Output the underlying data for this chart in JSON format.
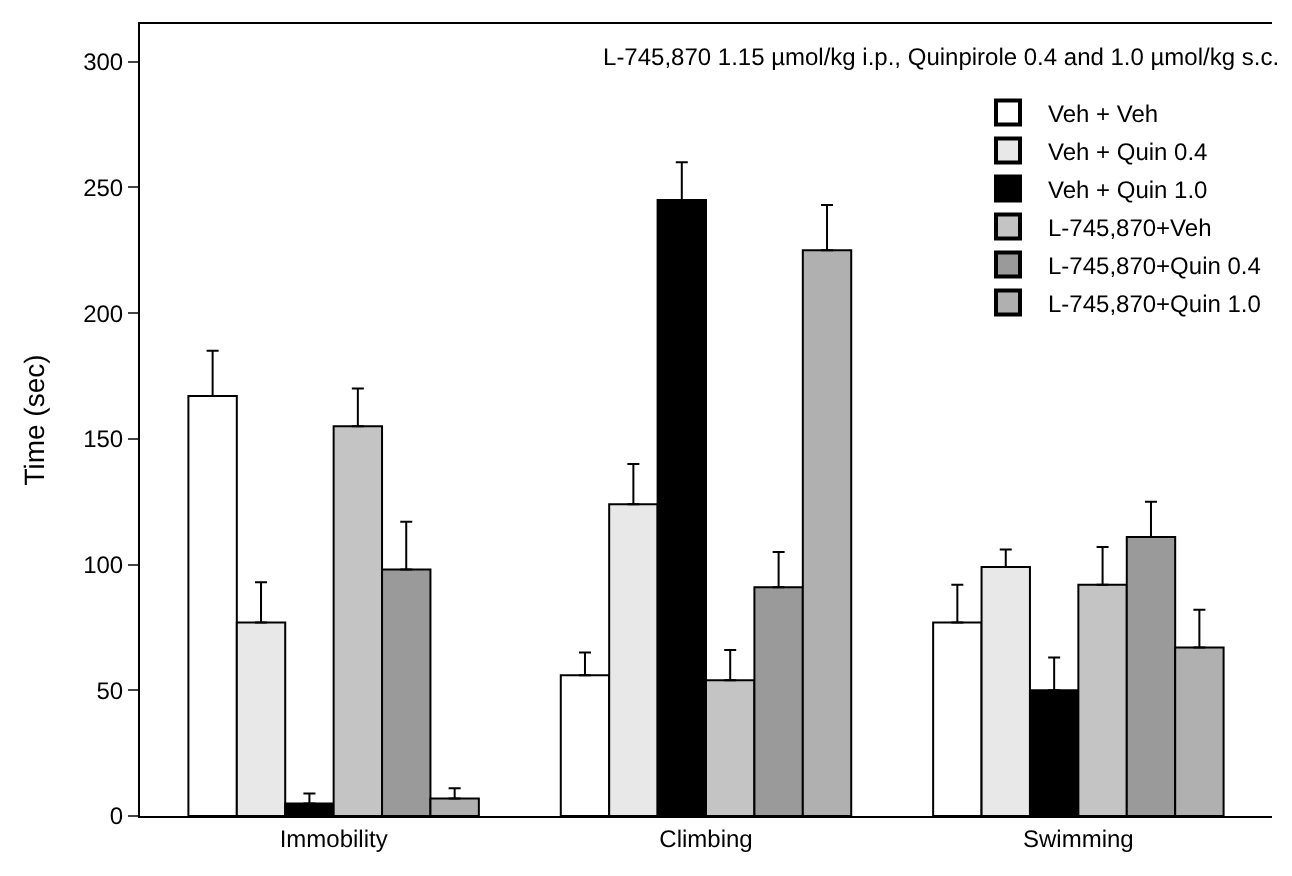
{
  "chart_data": {
    "type": "bar",
    "title": "L-745,870 1.15 µmol/kg i.p., Quinpirole 0.4 and 1.0 µmol/kg s.c.",
    "ylabel": "Time (sec)",
    "categories": [
      "Immobility",
      "Climbing",
      "Swimming"
    ],
    "series": [
      {
        "name": "Veh + Veh",
        "color": "#ffffff",
        "values": [
          167,
          56,
          77
        ],
        "errors": [
          [
            167,
            185
          ],
          [
            56,
            65
          ],
          [
            77,
            92
          ]
        ]
      },
      {
        "name": "Veh + Quin 0.4",
        "color": "#e8e8e8",
        "values": [
          77,
          124,
          99
        ],
        "errors": [
          [
            77,
            93
          ],
          [
            124,
            140
          ],
          [
            99,
            106
          ]
        ]
      },
      {
        "name": "Veh + Quin 1.0",
        "color": "#000000",
        "values": [
          5,
          245,
          50
        ],
        "errors": [
          [
            5,
            9
          ],
          [
            245,
            260
          ],
          [
            50,
            63
          ]
        ]
      },
      {
        "name": "L-745,870+Veh",
        "color": "#c4c4c4",
        "values": [
          155,
          54,
          92
        ],
        "errors": [
          [
            155,
            170
          ],
          [
            54,
            66
          ],
          [
            92,
            107
          ]
        ]
      },
      {
        "name": "L-745,870+Quin 0.4",
        "color": "#9a9a9a",
        "values": [
          98,
          91,
          111
        ],
        "errors": [
          [
            98,
            117
          ],
          [
            91,
            105
          ],
          [
            111,
            125
          ]
        ]
      },
      {
        "name": "L-745,870+Quin 1.0",
        "color": "#b0b0b0",
        "values": [
          7,
          225,
          67
        ],
        "errors": [
          [
            7,
            11
          ],
          [
            225,
            243
          ],
          [
            67,
            82
          ]
        ]
      }
    ],
    "ylim": [
      0,
      315
    ],
    "yticks": [
      0,
      50,
      100,
      150,
      200,
      250,
      300
    ],
    "legend": "top right"
  }
}
